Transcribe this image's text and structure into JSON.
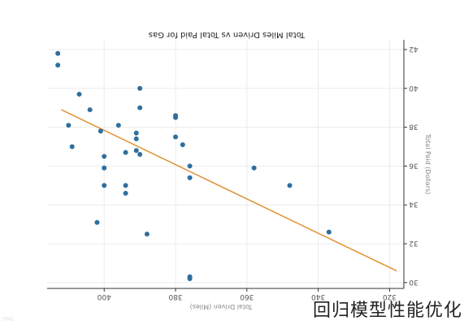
{
  "chart_data": {
    "type": "scatter",
    "title": "Total Miles Driven vs Total Paid for Gas",
    "xlabel": "Total Driven (Miles)",
    "ylabel": "Total Paid (Dollars)",
    "x_axis_reversed": true,
    "y_axis_reversed": true,
    "xlim": [
      316,
      416
    ],
    "ylim": [
      29.7,
      42.5
    ],
    "x_ticks": [
      320,
      340,
      360,
      380,
      400
    ],
    "y_ticks": [
      30,
      32,
      34,
      36,
      38,
      40,
      42
    ],
    "grid": true,
    "series": [
      {
        "points": [
          [
            413,
            41.8
          ],
          [
            413,
            41.2
          ],
          [
            407,
            39.7
          ],
          [
            410,
            38.1
          ],
          [
            409,
            37.0
          ],
          [
            404,
            38.9
          ],
          [
            401,
            37.8
          ],
          [
            396,
            38.1
          ],
          [
            400,
            36.5
          ],
          [
            400,
            35.9
          ],
          [
            400,
            35.0
          ],
          [
            402,
            33.1
          ],
          [
            394,
            36.7
          ],
          [
            391,
            37.7
          ],
          [
            391,
            37.4
          ],
          [
            391,
            36.8
          ],
          [
            390,
            40.0
          ],
          [
            390,
            39.0
          ],
          [
            390,
            36.6
          ],
          [
            394,
            35.0
          ],
          [
            394,
            34.6
          ],
          [
            388,
            32.5
          ],
          [
            380,
            38.6
          ],
          [
            380,
            38.5
          ],
          [
            380,
            37.5
          ],
          [
            378,
            37.1
          ],
          [
            376,
            35.4
          ],
          [
            376,
            36.0
          ],
          [
            376,
            30.3
          ],
          [
            376,
            30.2
          ],
          [
            358,
            35.9
          ],
          [
            348,
            35.0
          ],
          [
            337,
            32.6
          ]
        ],
        "color": "#2e6f9e"
      }
    ],
    "trendline": {
      "points": [
        [
          412,
          38.9
        ],
        [
          318,
          30.6
        ]
      ],
      "color": "#e0912f"
    }
  },
  "caption": {
    "text": "回归模型性能优化"
  },
  "corner_mark": {
    "text": "ITMC"
  }
}
